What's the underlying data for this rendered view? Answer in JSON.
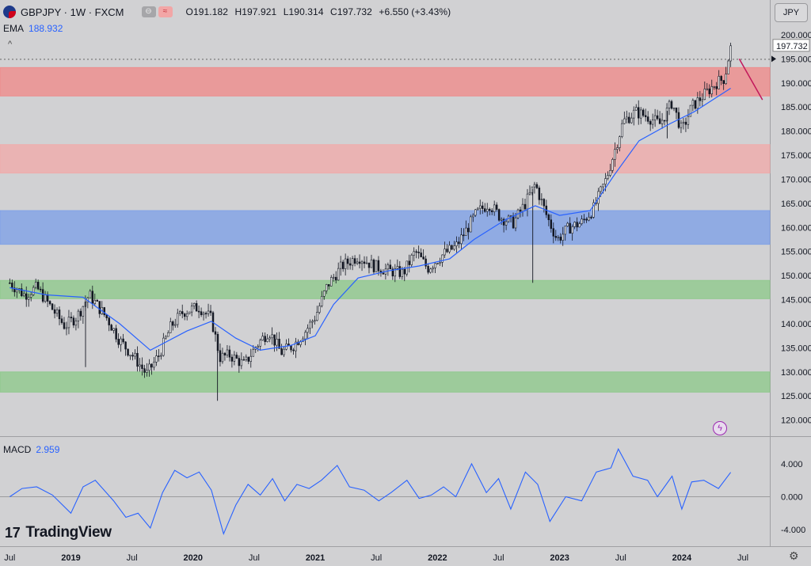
{
  "header": {
    "symbol": "GBPJPY · 1W · FXCM",
    "o_label": "O",
    "o_value": "191.182",
    "h_label": "H",
    "h_value": "197.921",
    "l_label": "L",
    "l_value": "190.314",
    "c_label": "C",
    "c_value": "197.732",
    "change": "+6.550 (+3.43%)",
    "currency": "JPY"
  },
  "indicators": {
    "ema_label": "EMA",
    "ema_value": "188.932",
    "macd_label": "MACD",
    "macd_value": "2.959"
  },
  "branding": {
    "logo_text": "TradingView"
  },
  "colors": {
    "background": "#d1d1d3",
    "zone_red": "#f08a8a",
    "zone_pink": "#f1aaaa",
    "zone_blue": "#7da0e8",
    "zone_green": "#8ec98c",
    "ema_line": "#2962ff",
    "macd_line": "#2962ff",
    "candle_up": "#ffffff",
    "candle_down": "#131722",
    "annotation_line": "#c2185b"
  },
  "chart_data": [
    {
      "type": "candlestick",
      "title": "GBPJPY · 1W · FXCM",
      "y_axis_ticks": [
        "200.000",
        "195.000",
        "190.000",
        "185.000",
        "180.000",
        "175.000",
        "170.000",
        "165.000",
        "160.000",
        "155.000",
        "150.000",
        "145.000",
        "140.000",
        "135.000",
        "130.000",
        "125.000",
        "120.000"
      ],
      "ylim": [
        116.5,
        201.5
      ],
      "x_axis_ticks": [
        "Jul",
        "2019",
        "Jul",
        "2020",
        "Jul",
        "2021",
        "Jul",
        "2022",
        "Jul",
        "2023",
        "Jul",
        "2024",
        "Jul"
      ],
      "last_price_label": "197.732",
      "zones": [
        {
          "low": 187.3,
          "high": 193.2,
          "color": "red"
        },
        {
          "low": 171.3,
          "high": 177.2,
          "color": "pink"
        },
        {
          "low": 156.5,
          "high": 163.5,
          "color": "blue"
        },
        {
          "low": 145.2,
          "high": 149.0,
          "color": "green"
        },
        {
          "low": 125.8,
          "high": 130.0,
          "color": "green"
        }
      ],
      "price_path": [
        {
          "x": 2018.5,
          "y": 148.5
        },
        {
          "x": 2018.62,
          "y": 146.0
        },
        {
          "x": 2018.72,
          "y": 147.5
        },
        {
          "x": 2018.85,
          "y": 143.0
        },
        {
          "x": 2018.95,
          "y": 139.5
        },
        {
          "x": 2019.05,
          "y": 141.5
        },
        {
          "x": 2019.15,
          "y": 146.0
        },
        {
          "x": 2019.3,
          "y": 141.0
        },
        {
          "x": 2019.4,
          "y": 136.5
        },
        {
          "x": 2019.52,
          "y": 133.0
        },
        {
          "x": 2019.62,
          "y": 129.5
        },
        {
          "x": 2019.72,
          "y": 133.5
        },
        {
          "x": 2019.82,
          "y": 139.5
        },
        {
          "x": 2019.92,
          "y": 142.5
        },
        {
          "x": 2020.05,
          "y": 143.5
        },
        {
          "x": 2020.15,
          "y": 141.0
        },
        {
          "x": 2020.22,
          "y": 133.0
        },
        {
          "x": 2020.3,
          "y": 133.5
        },
        {
          "x": 2020.42,
          "y": 131.5
        },
        {
          "x": 2020.52,
          "y": 135.5
        },
        {
          "x": 2020.62,
          "y": 138.5
        },
        {
          "x": 2020.72,
          "y": 134.0
        },
        {
          "x": 2020.82,
          "y": 135.5
        },
        {
          "x": 2020.92,
          "y": 138.5
        },
        {
          "x": 2021.0,
          "y": 141.5
        },
        {
          "x": 2021.1,
          "y": 148.0
        },
        {
          "x": 2021.22,
          "y": 152.0
        },
        {
          "x": 2021.35,
          "y": 154.0
        },
        {
          "x": 2021.48,
          "y": 152.0
        },
        {
          "x": 2021.6,
          "y": 151.0
        },
        {
          "x": 2021.72,
          "y": 150.5
        },
        {
          "x": 2021.82,
          "y": 155.0
        },
        {
          "x": 2021.92,
          "y": 151.5
        },
        {
          "x": 2022.05,
          "y": 154.5
        },
        {
          "x": 2022.15,
          "y": 156.0
        },
        {
          "x": 2022.25,
          "y": 160.0
        },
        {
          "x": 2022.32,
          "y": 163.0
        },
        {
          "x": 2022.42,
          "y": 165.0
        },
        {
          "x": 2022.52,
          "y": 162.0
        },
        {
          "x": 2022.62,
          "y": 161.0
        },
        {
          "x": 2022.72,
          "y": 165.0
        },
        {
          "x": 2022.8,
          "y": 169.0
        },
        {
          "x": 2022.9,
          "y": 162.0
        },
        {
          "x": 2022.98,
          "y": 157.5
        },
        {
          "x": 2023.08,
          "y": 160.0
        },
        {
          "x": 2023.18,
          "y": 161.0
        },
        {
          "x": 2023.28,
          "y": 164.0
        },
        {
          "x": 2023.38,
          "y": 170.0
        },
        {
          "x": 2023.45,
          "y": 176.0
        },
        {
          "x": 2023.52,
          "y": 182.0
        },
        {
          "x": 2023.62,
          "y": 184.0
        },
        {
          "x": 2023.72,
          "y": 183.0
        },
        {
          "x": 2023.82,
          "y": 181.5
        },
        {
          "x": 2023.92,
          "y": 186.0
        },
        {
          "x": 2024.0,
          "y": 180.0
        },
        {
          "x": 2024.08,
          "y": 185.0
        },
        {
          "x": 2024.18,
          "y": 187.5
        },
        {
          "x": 2024.28,
          "y": 190.0
        },
        {
          "x": 2024.35,
          "y": 191.0
        },
        {
          "x": 2024.4,
          "y": 197.7
        }
      ],
      "ema_path": [
        {
          "x": 2018.5,
          "y": 147.5
        },
        {
          "x": 2018.8,
          "y": 146.0
        },
        {
          "x": 2019.1,
          "y": 145.5
        },
        {
          "x": 2019.4,
          "y": 140.0
        },
        {
          "x": 2019.65,
          "y": 134.5
        },
        {
          "x": 2019.95,
          "y": 138.5
        },
        {
          "x": 2020.15,
          "y": 140.5
        },
        {
          "x": 2020.35,
          "y": 137.0
        },
        {
          "x": 2020.55,
          "y": 134.5
        },
        {
          "x": 2020.8,
          "y": 135.5
        },
        {
          "x": 2021.0,
          "y": 137.5
        },
        {
          "x": 2021.15,
          "y": 144.0
        },
        {
          "x": 2021.35,
          "y": 149.5
        },
        {
          "x": 2021.6,
          "y": 151.0
        },
        {
          "x": 2021.85,
          "y": 152.0
        },
        {
          "x": 2022.1,
          "y": 153.5
        },
        {
          "x": 2022.3,
          "y": 157.5
        },
        {
          "x": 2022.55,
          "y": 161.5
        },
        {
          "x": 2022.8,
          "y": 164.5
        },
        {
          "x": 2023.0,
          "y": 162.5
        },
        {
          "x": 2023.25,
          "y": 163.5
        },
        {
          "x": 2023.45,
          "y": 171.0
        },
        {
          "x": 2023.65,
          "y": 178.0
        },
        {
          "x": 2023.9,
          "y": 181.5
        },
        {
          "x": 2024.1,
          "y": 184.0
        },
        {
          "x": 2024.4,
          "y": 188.9
        }
      ]
    },
    {
      "type": "line",
      "title": "MACD",
      "y_axis_ticks": [
        "4.000",
        "0.000",
        "-4.000"
      ],
      "ylim": [
        -6.0,
        6.8
      ],
      "series": [
        {
          "name": "MACD",
          "points": [
            {
              "x": 2018.5,
              "y": 0.0
            },
            {
              "x": 2018.6,
              "y": 1.0
            },
            {
              "x": 2018.72,
              "y": 1.2
            },
            {
              "x": 2018.85,
              "y": 0.2
            },
            {
              "x": 2019.0,
              "y": -2.0
            },
            {
              "x": 2019.1,
              "y": 1.2
            },
            {
              "x": 2019.2,
              "y": 2.0
            },
            {
              "x": 2019.35,
              "y": -0.5
            },
            {
              "x": 2019.45,
              "y": -2.5
            },
            {
              "x": 2019.55,
              "y": -2.0
            },
            {
              "x": 2019.65,
              "y": -3.8
            },
            {
              "x": 2019.75,
              "y": 0.5
            },
            {
              "x": 2019.85,
              "y": 3.2
            },
            {
              "x": 2019.95,
              "y": 2.3
            },
            {
              "x": 2020.05,
              "y": 3.0
            },
            {
              "x": 2020.15,
              "y": 0.8
            },
            {
              "x": 2020.25,
              "y": -4.5
            },
            {
              "x": 2020.35,
              "y": -1.0
            },
            {
              "x": 2020.45,
              "y": 1.5
            },
            {
              "x": 2020.55,
              "y": 0.2
            },
            {
              "x": 2020.65,
              "y": 2.2
            },
            {
              "x": 2020.75,
              "y": -0.5
            },
            {
              "x": 2020.85,
              "y": 1.5
            },
            {
              "x": 2020.95,
              "y": 1.0
            },
            {
              "x": 2021.05,
              "y": 2.0
            },
            {
              "x": 2021.18,
              "y": 3.8
            },
            {
              "x": 2021.28,
              "y": 1.2
            },
            {
              "x": 2021.4,
              "y": 0.8
            },
            {
              "x": 2021.52,
              "y": -0.5
            },
            {
              "x": 2021.62,
              "y": 0.5
            },
            {
              "x": 2021.75,
              "y": 2.0
            },
            {
              "x": 2021.85,
              "y": -0.2
            },
            {
              "x": 2021.95,
              "y": 0.2
            },
            {
              "x": 2022.05,
              "y": 1.2
            },
            {
              "x": 2022.15,
              "y": 0.0
            },
            {
              "x": 2022.28,
              "y": 4.0
            },
            {
              "x": 2022.4,
              "y": 0.5
            },
            {
              "x": 2022.5,
              "y": 2.2
            },
            {
              "x": 2022.6,
              "y": -1.5
            },
            {
              "x": 2022.72,
              "y": 3.0
            },
            {
              "x": 2022.82,
              "y": 1.5
            },
            {
              "x": 2022.92,
              "y": -3.0
            },
            {
              "x": 2023.05,
              "y": 0.0
            },
            {
              "x": 2023.18,
              "y": -0.5
            },
            {
              "x": 2023.3,
              "y": 3.0
            },
            {
              "x": 2023.42,
              "y": 3.5
            },
            {
              "x": 2023.48,
              "y": 5.8
            },
            {
              "x": 2023.6,
              "y": 2.5
            },
            {
              "x": 2023.72,
              "y": 2.0
            },
            {
              "x": 2023.8,
              "y": 0.0
            },
            {
              "x": 2023.92,
              "y": 2.5
            },
            {
              "x": 2024.0,
              "y": -1.5
            },
            {
              "x": 2024.08,
              "y": 1.8
            },
            {
              "x": 2024.18,
              "y": 2.0
            },
            {
              "x": 2024.3,
              "y": 1.0
            },
            {
              "x": 2024.4,
              "y": 2.96
            }
          ]
        }
      ]
    }
  ]
}
